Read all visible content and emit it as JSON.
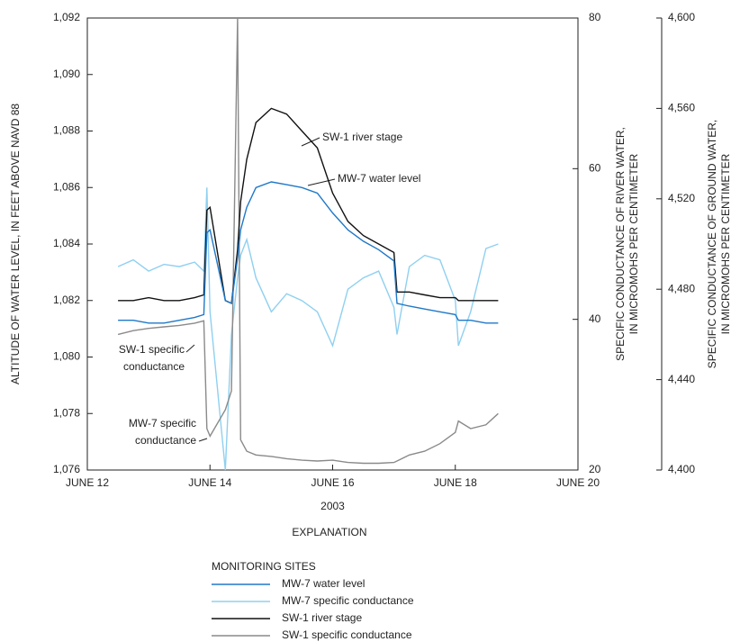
{
  "chart_data": {
    "type": "line",
    "x_label": "2003",
    "y_label": [
      "ALTITUDE OF WATER LEVEL, IN FEET ABOVE NAVD 88"
    ],
    "y2_label": [
      "SPECIFIC CONDUCTANCE OF RIVER WATER,",
      "IN MICROMOHS PER CENTIMETER"
    ],
    "y3_label": [
      "SPECIFIC CONDUCTANCE OF GROUND WATER,",
      "IN MICROMOHS PER CENTIMETER"
    ],
    "xlim": [
      12,
      20
    ],
    "xticks": [
      {
        "value": 12,
        "label": "JUNE 12"
      },
      {
        "value": 14,
        "label": "JUNE 14"
      },
      {
        "value": 16,
        "label": "JUNE 16"
      },
      {
        "value": 18,
        "label": "JUNE 18"
      },
      {
        "value": 20,
        "label": "JUNE 20"
      }
    ],
    "ylim": [
      1076,
      1092
    ],
    "yticks": [
      {
        "value": 1076,
        "label": "1,076"
      },
      {
        "value": 1078,
        "label": "1,078"
      },
      {
        "value": 1080,
        "label": "1,080"
      },
      {
        "value": 1082,
        "label": "1,082"
      },
      {
        "value": 1084,
        "label": "1,084"
      },
      {
        "value": 1086,
        "label": "1,086"
      },
      {
        "value": 1088,
        "label": "1,088"
      },
      {
        "value": 1090,
        "label": "1,090"
      },
      {
        "value": 1092,
        "label": "1,092"
      }
    ],
    "y2lim": [
      20,
      80
    ],
    "y2ticks": [
      20,
      40,
      60,
      80
    ],
    "y3lim": [
      4400,
      4600
    ],
    "y3ticks": [
      {
        "value": 4400,
        "label": "4,400"
      },
      {
        "value": 4440,
        "label": "4,440"
      },
      {
        "value": 4480,
        "label": "4,480"
      },
      {
        "value": 4520,
        "label": "4,520"
      },
      {
        "value": 4560,
        "label": "4,560"
      },
      {
        "value": 4600,
        "label": "4,600"
      }
    ],
    "x": [
      12.5,
      12.75,
      13,
      13.25,
      13.5,
      13.75,
      13.9,
      13.95,
      14.0,
      14.25,
      14.35,
      14.45,
      14.5,
      14.6,
      14.75,
      15,
      15.25,
      15.5,
      15.75,
      16,
      16.25,
      16.5,
      16.75,
      17.0,
      17.05,
      17.25,
      17.5,
      17.75,
      18.0,
      18.05,
      18.25,
      18.5,
      18.7
    ],
    "series": [
      {
        "name": "MW-7 water level",
        "color": "#1f78c8",
        "axis": "y",
        "values": [
          1081.3,
          1081.3,
          1081.2,
          1081.2,
          1081.3,
          1081.4,
          1081.5,
          1084.4,
          1084.5,
          1082.0,
          1081.9,
          1083.5,
          1084.5,
          1085.3,
          1086.0,
          1086.2,
          1086.1,
          1086.0,
          1085.8,
          1085.1,
          1084.5,
          1084.1,
          1083.8,
          1083.4,
          1081.9,
          1081.8,
          1081.7,
          1081.6,
          1081.5,
          1081.3,
          1081.3,
          1081.2,
          1081.2
        ]
      },
      {
        "name": "MW-7 specific conductance",
        "color": "#8fd0f0",
        "axis": "y3",
        "values": [
          4490,
          4493,
          4488,
          4491,
          4490,
          4492,
          4488,
          4525,
          4470,
          4400,
          4460,
          4485,
          4495,
          4502,
          4485,
          4470,
          4478,
          4475,
          4470,
          4455,
          4480,
          4485,
          4488,
          4472,
          4460,
          4490,
          4495,
          4493,
          4475,
          4455,
          4470,
          4498,
          4500
        ]
      },
      {
        "name": "SW-1 river stage",
        "color": "#111111",
        "axis": "y",
        "values": [
          1082.0,
          1082.0,
          1082.1,
          1082.0,
          1082.0,
          1082.1,
          1082.2,
          1085.2,
          1085.3,
          1082.0,
          1081.9,
          1083.8,
          1085.5,
          1087.0,
          1088.3,
          1088.8,
          1088.6,
          1088.0,
          1087.4,
          1085.8,
          1084.8,
          1084.3,
          1084.0,
          1083.7,
          1082.3,
          1082.3,
          1082.2,
          1082.1,
          1082.1,
          1082.0,
          1082.0,
          1082.0,
          1082.0
        ]
      },
      {
        "name": "SW-1 specific conductance",
        "color": "#8a8a8a",
        "axis": "y2",
        "values": [
          38.0,
          38.5,
          38.8,
          39.0,
          39.2,
          39.5,
          39.8,
          25.5,
          24.5,
          28.0,
          30.5,
          80,
          24.0,
          22.5,
          22.0,
          21.8,
          21.5,
          21.3,
          21.2,
          21.3,
          21.0,
          20.9,
          20.9,
          21.0,
          21.2,
          22.0,
          22.5,
          23.5,
          25.0,
          26.5,
          25.5,
          26.0,
          27.5
        ]
      }
    ],
    "annotations": [
      [
        "SW-1 river stage"
      ],
      [
        "MW-7 water level"
      ],
      [
        "SW-1 specific",
        "conductance"
      ],
      [
        "MW-7 specific",
        "conductance"
      ]
    ],
    "explanation": {
      "title": "EXPLANATION",
      "subtitle": "MONITORING SITES"
    }
  }
}
